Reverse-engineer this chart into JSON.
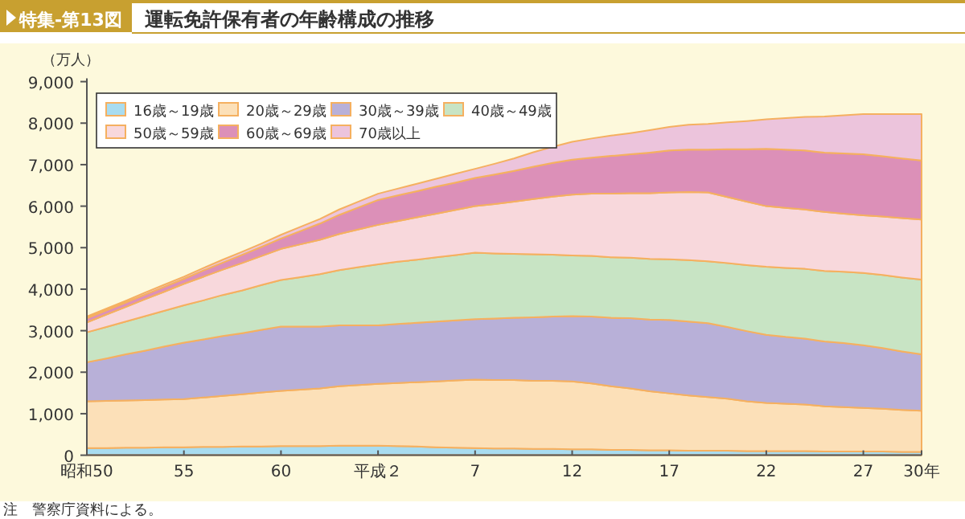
{
  "chart_data": {
    "type": "area",
    "stacked": true,
    "title": "運転免許保有者の年齢構成の推移",
    "subtitle": "特集-第13図",
    "ylabel": "（万人）",
    "annotations": [
      "注　警察庁資料による。"
    ],
    "categories": [
      "昭和50",
      null,
      null,
      null,
      null,
      "55",
      null,
      null,
      null,
      null,
      "60",
      null,
      null,
      null,
      null,
      "平成２",
      null,
      null,
      null,
      null,
      "7",
      null,
      null,
      null,
      null,
      "12",
      null,
      null,
      null,
      null,
      "17",
      null,
      null,
      null,
      null,
      "22",
      null,
      null,
      null,
      null,
      "27",
      null,
      null,
      "30年"
    ],
    "series": [
      {
        "name": "16歳～19歳",
        "color": "#a8dcf0",
        "values": [
          170,
          170,
          180,
          180,
          190,
          190,
          200,
          200,
          210,
          210,
          220,
          220,
          220,
          230,
          230,
          230,
          220,
          210,
          190,
          180,
          170,
          160,
          160,
          150,
          150,
          140,
          140,
          130,
          130,
          120,
          120,
          110,
          110,
          110,
          100,
          100,
          100,
          100,
          90,
          90,
          90,
          90,
          80,
          80
        ]
      },
      {
        "name": "20歳～29歳",
        "color": "#fce0b8",
        "values": [
          1130,
          1140,
          1140,
          1150,
          1150,
          1160,
          1190,
          1230,
          1260,
          1300,
          1330,
          1360,
          1390,
          1430,
          1460,
          1490,
          1520,
          1550,
          1590,
          1620,
          1650,
          1650,
          1650,
          1640,
          1640,
          1640,
          1590,
          1530,
          1480,
          1420,
          1370,
          1330,
          1290,
          1250,
          1200,
          1160,
          1140,
          1120,
          1090,
          1070,
          1050,
          1030,
          1010,
          990
        ]
      },
      {
        "name": "30歳～39歳",
        "color": "#b8b0d8",
        "values": [
          940,
          1020,
          1110,
          1190,
          1280,
          1360,
          1400,
          1440,
          1470,
          1510,
          1550,
          1520,
          1490,
          1470,
          1440,
          1410,
          1420,
          1430,
          1440,
          1450,
          1460,
          1480,
          1500,
          1530,
          1550,
          1570,
          1610,
          1650,
          1690,
          1730,
          1770,
          1780,
          1780,
          1730,
          1690,
          1640,
          1610,
          1590,
          1560,
          1540,
          1510,
          1460,
          1410,
          1360
        ]
      },
      {
        "name": "40歳～49歳",
        "color": "#c8e4c4",
        "values": [
          720,
          760,
          790,
          830,
          860,
          900,
          940,
          990,
          1030,
          1080,
          1120,
          1190,
          1260,
          1330,
          1400,
          1470,
          1500,
          1520,
          1550,
          1570,
          1600,
          1570,
          1540,
          1520,
          1490,
          1460,
          1460,
          1460,
          1460,
          1460,
          1460,
          1480,
          1490,
          1540,
          1590,
          1640,
          1660,
          1680,
          1700,
          1720,
          1740,
          1760,
          1780,
          1800
        ]
      },
      {
        "name": "50歳～59歳",
        "color": "#f8d8dc",
        "values": [
          240,
          300,
          350,
          410,
          460,
          520,
          570,
          610,
          660,
          700,
          750,
          790,
          830,
          870,
          910,
          950,
          980,
          1020,
          1050,
          1090,
          1120,
          1190,
          1260,
          1330,
          1400,
          1470,
          1500,
          1530,
          1550,
          1580,
          1610,
          1640,
          1660,
          1590,
          1530,
          1460,
          1450,
          1430,
          1420,
          1400,
          1390,
          1410,
          1430,
          1450
        ]
      },
      {
        "name": "60歳～69歳",
        "color": "#dc90b8",
        "values": [
          100,
          100,
          110,
          110,
          120,
          120,
          150,
          170,
          200,
          220,
          250,
          320,
          390,
          460,
          530,
          600,
          620,
          630,
          650,
          660,
          680,
          710,
          740,
          780,
          810,
          840,
          870,
          910,
          940,
          980,
          1010,
          1020,
          1030,
          1150,
          1260,
          1380,
          1400,
          1420,
          1430,
          1450,
          1470,
          1450,
          1440,
          1420
        ]
      },
      {
        "name": "70歳以上",
        "color": "#ecc4dc",
        "values": [
          40,
          40,
          40,
          50,
          50,
          50,
          60,
          70,
          70,
          80,
          90,
          100,
          110,
          130,
          140,
          150,
          160,
          180,
          190,
          210,
          220,
          260,
          300,
          350,
          390,
          430,
          460,
          490,
          510,
          540,
          570,
          600,
          620,
          650,
          680,
          710,
          760,
          810,
          870,
          920,
          970,
          1020,
          1070,
          1120
        ]
      }
    ],
    "ylim": [
      0,
      9000
    ],
    "yticks": [
      {
        "value": 0,
        "label": "0"
      },
      {
        "value": 1000,
        "label": "1,000"
      },
      {
        "value": 2000,
        "label": "2,000"
      },
      {
        "value": 3000,
        "label": "3,000"
      },
      {
        "value": 4000,
        "label": "4,000"
      },
      {
        "value": 5000,
        "label": "5,000"
      },
      {
        "value": 6000,
        "label": "6,000"
      },
      {
        "value": 7000,
        "label": "7,000"
      },
      {
        "value": 8000,
        "label": "8,000"
      },
      {
        "value": 9000,
        "label": "9,000"
      }
    ],
    "legend": "top left"
  }
}
